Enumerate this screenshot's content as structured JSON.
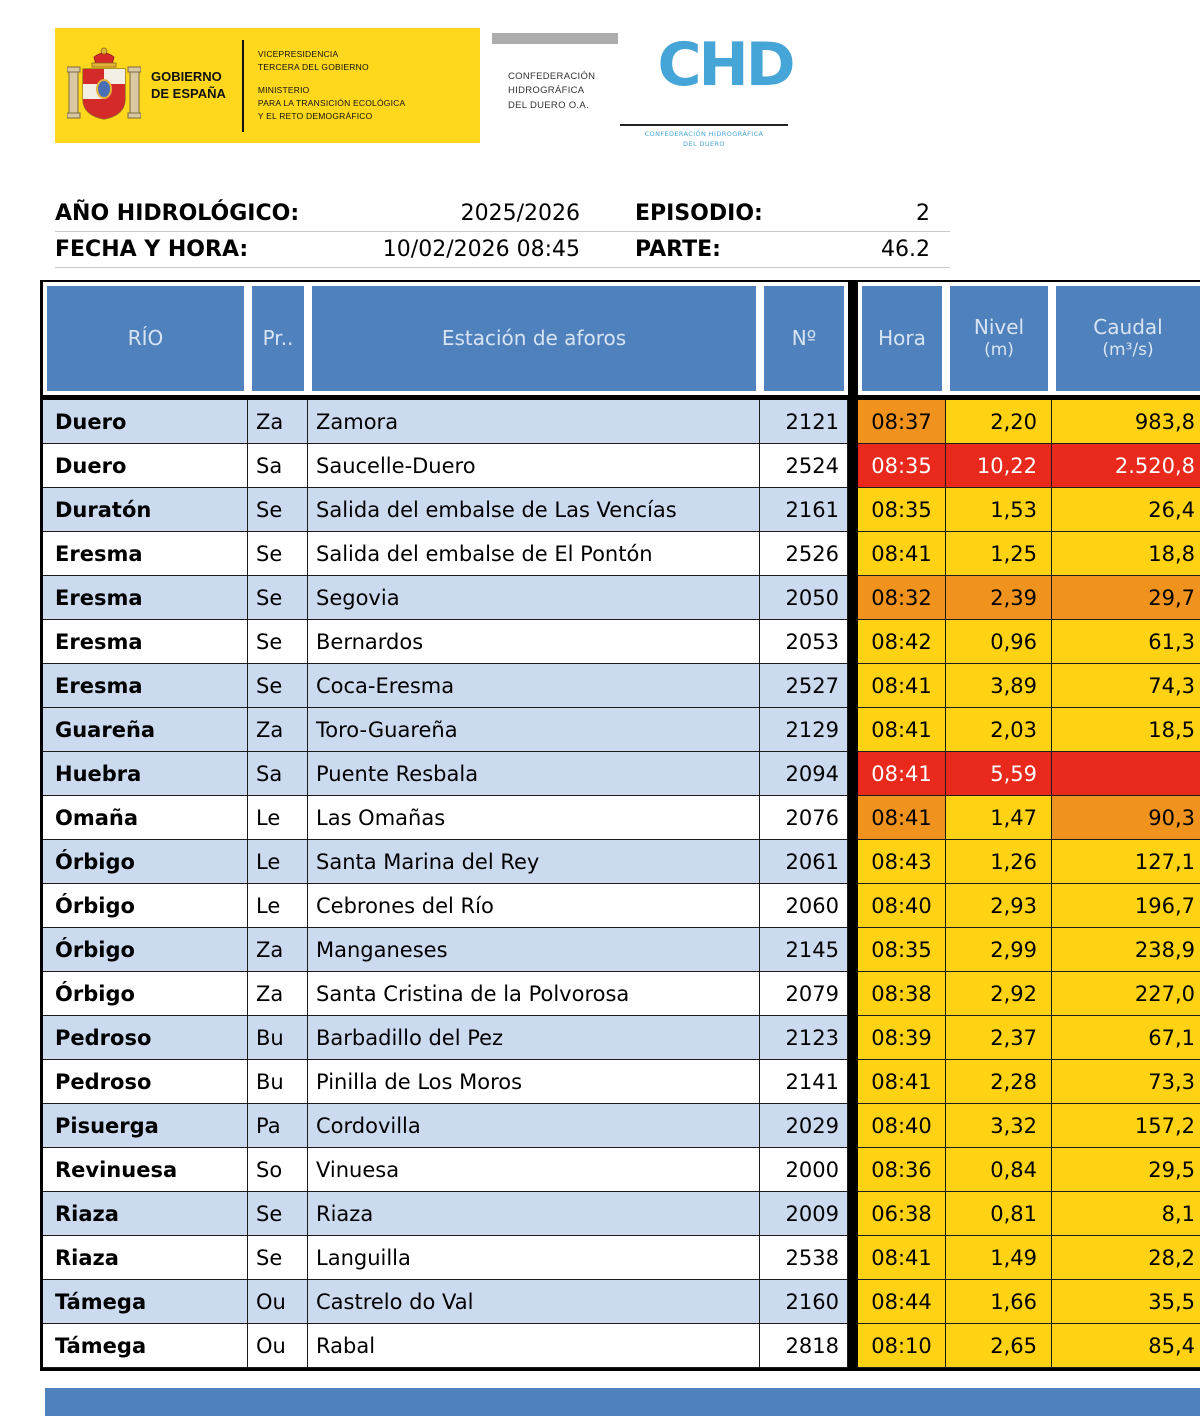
{
  "colors": {
    "header_blue": "#4F81BD",
    "row_blue": "#CBDAEF",
    "status_yellow": "#FFD213",
    "status_orange": "#F0921E",
    "status_red": "#E8291C",
    "logo_yellow": "#FFD71C",
    "chd_blue": "#45A5D6"
  },
  "branding": {
    "gobierno_line1": "GOBIERNO",
    "gobierno_line2": "DE ESPAÑA",
    "vice_line1": "VICEPRESIDENCIA",
    "vice_line2": "TERCERA DEL GOBIERNO",
    "min_line1": "MINISTERIO",
    "min_line2": "PARA LA TRANSICIÓN ECOLÓGICA",
    "min_line3": "Y EL RETO DEMOGRÁFICO",
    "conf_line1": "CONFEDERACIÓN",
    "conf_line2": "HIDROGRÁFICA",
    "conf_line3": "DEL DUERO O.A.",
    "chd": "CHD",
    "chd_sub1": "CONFEDERACIÓN HIDROGRÁFICA",
    "chd_sub2": "DEL DUERO"
  },
  "info": {
    "ano_label": "AÑO HIDROLÓGICO:",
    "ano_value": "2025/2026",
    "episodio_label": "EPISODIO:",
    "episodio_value": "2",
    "fecha_label": "FECHA Y HORA:",
    "fecha_value": "10/02/2026 08:45",
    "parte_label": "PARTE:",
    "parte_value": "46.2"
  },
  "table": {
    "headers": {
      "rio": "RÍO",
      "pr": "Pr..",
      "estacion": "Estación de aforos",
      "num": "Nº",
      "hora": "Hora",
      "nivel_line1": "Nivel",
      "nivel_line2": "(m)",
      "caudal_line1": "Caudal",
      "caudal_line2": "(m³/s)"
    },
    "rows": [
      {
        "rio": "Duero",
        "pr": "Za",
        "estacion": "Zamora",
        "num": "2121",
        "hora": "08:37",
        "nivel": "2,20",
        "caudal": "983,8",
        "shaded": true,
        "status": [
          "orange",
          "yellow",
          "yellow"
        ]
      },
      {
        "rio": "Duero",
        "pr": "Sa",
        "estacion": "Saucelle-Duero",
        "num": "2524",
        "hora": "08:35",
        "nivel": "10,22",
        "caudal": "2.520,8",
        "shaded": false,
        "status": [
          "red",
          "red",
          "red"
        ]
      },
      {
        "rio": "Duratón",
        "pr": "Se",
        "estacion": "Salida del embalse de Las Vencías",
        "num": "2161",
        "hora": "08:35",
        "nivel": "1,53",
        "caudal": "26,4",
        "shaded": true,
        "status": [
          "yellow",
          "yellow",
          "yellow"
        ]
      },
      {
        "rio": "Eresma",
        "pr": "Se",
        "estacion": "Salida del embalse de El Pontón",
        "num": "2526",
        "hora": "08:41",
        "nivel": "1,25",
        "caudal": "18,8",
        "shaded": false,
        "status": [
          "yellow",
          "yellow",
          "yellow"
        ]
      },
      {
        "rio": "Eresma",
        "pr": "Se",
        "estacion": "Segovia",
        "num": "2050",
        "hora": "08:32",
        "nivel": "2,39",
        "caudal": "29,7",
        "shaded": true,
        "status": [
          "orange",
          "orange",
          "orange"
        ]
      },
      {
        "rio": "Eresma",
        "pr": "Se",
        "estacion": "Bernardos",
        "num": "2053",
        "hora": "08:42",
        "nivel": "0,96",
        "caudal": "61,3",
        "shaded": false,
        "status": [
          "yellow",
          "yellow",
          "yellow"
        ]
      },
      {
        "rio": "Eresma",
        "pr": "Se",
        "estacion": "Coca-Eresma",
        "num": "2527",
        "hora": "08:41",
        "nivel": "3,89",
        "caudal": "74,3",
        "shaded": true,
        "status": [
          "yellow",
          "yellow",
          "yellow"
        ]
      },
      {
        "rio": "Guareña",
        "pr": "Za",
        "estacion": "Toro-Guareña",
        "num": "2129",
        "hora": "08:41",
        "nivel": "2,03",
        "caudal": "18,5",
        "shaded": true,
        "status": [
          "yellow",
          "yellow",
          "yellow"
        ]
      },
      {
        "rio": "Huebra",
        "pr": "Sa",
        "estacion": "Puente Resbala",
        "num": "2094",
        "hora": "08:41",
        "nivel": "5,59",
        "caudal": "",
        "shaded": true,
        "status": [
          "red",
          "red",
          "red"
        ]
      },
      {
        "rio": "Omaña",
        "pr": "Le",
        "estacion": "Las Omañas",
        "num": "2076",
        "hora": "08:41",
        "nivel": "1,47",
        "caudal": "90,3",
        "shaded": false,
        "status": [
          "orange",
          "yellow",
          "orange"
        ]
      },
      {
        "rio": "Órbigo",
        "pr": "Le",
        "estacion": "Santa Marina del Rey",
        "num": "2061",
        "hora": "08:43",
        "nivel": "1,26",
        "caudal": "127,1",
        "shaded": true,
        "status": [
          "yellow",
          "yellow",
          "yellow"
        ]
      },
      {
        "rio": "Órbigo",
        "pr": "Le",
        "estacion": "Cebrones del Río",
        "num": "2060",
        "hora": "08:40",
        "nivel": "2,93",
        "caudal": "196,7",
        "shaded": false,
        "status": [
          "yellow",
          "yellow",
          "yellow"
        ]
      },
      {
        "rio": "Órbigo",
        "pr": "Za",
        "estacion": "Manganeses",
        "num": "2145",
        "hora": "08:35",
        "nivel": "2,99",
        "caudal": "238,9",
        "shaded": true,
        "status": [
          "yellow",
          "yellow",
          "yellow"
        ]
      },
      {
        "rio": "Órbigo",
        "pr": "Za",
        "estacion": "Santa Cristina de la Polvorosa",
        "num": "2079",
        "hora": "08:38",
        "nivel": "2,92",
        "caudal": "227,0",
        "shaded": false,
        "status": [
          "yellow",
          "yellow",
          "yellow"
        ]
      },
      {
        "rio": "Pedroso",
        "pr": "Bu",
        "estacion": "Barbadillo del Pez",
        "num": "2123",
        "hora": "08:39",
        "nivel": "2,37",
        "caudal": "67,1",
        "shaded": true,
        "status": [
          "yellow",
          "yellow",
          "yellow"
        ]
      },
      {
        "rio": "Pedroso",
        "pr": "Bu",
        "estacion": "Pinilla de Los Moros",
        "num": "2141",
        "hora": "08:41",
        "nivel": "2,28",
        "caudal": "73,3",
        "shaded": false,
        "status": [
          "yellow",
          "yellow",
          "yellow"
        ]
      },
      {
        "rio": "Pisuerga",
        "pr": "Pa",
        "estacion": "Cordovilla",
        "num": "2029",
        "hora": "08:40",
        "nivel": "3,32",
        "caudal": "157,2",
        "shaded": true,
        "status": [
          "yellow",
          "yellow",
          "yellow"
        ]
      },
      {
        "rio": "Revinuesa",
        "pr": "So",
        "estacion": "Vinuesa",
        "num": "2000",
        "hora": "08:36",
        "nivel": "0,84",
        "caudal": "29,5",
        "shaded": false,
        "status": [
          "yellow",
          "yellow",
          "yellow"
        ]
      },
      {
        "rio": "Riaza",
        "pr": "Se",
        "estacion": "Riaza",
        "num": "2009",
        "hora": "06:38",
        "nivel": "0,81",
        "caudal": "8,1",
        "shaded": true,
        "status": [
          "yellow",
          "yellow",
          "yellow"
        ]
      },
      {
        "rio": "Riaza",
        "pr": "Se",
        "estacion": "Languilla",
        "num": "2538",
        "hora": "08:41",
        "nivel": "1,49",
        "caudal": "28,2",
        "shaded": false,
        "status": [
          "yellow",
          "yellow",
          "yellow"
        ]
      },
      {
        "rio": "Támega",
        "pr": "Ou",
        "estacion": "Castrelo do Val",
        "num": "2160",
        "hora": "08:44",
        "nivel": "1,66",
        "caudal": "35,5",
        "shaded": true,
        "status": [
          "yellow",
          "yellow",
          "yellow"
        ]
      },
      {
        "rio": "Támega",
        "pr": "Ou",
        "estacion": "Rabal",
        "num": "2818",
        "hora": "08:10",
        "nivel": "2,65",
        "caudal": "85,4",
        "shaded": false,
        "status": [
          "yellow",
          "yellow",
          "yellow"
        ]
      }
    ]
  }
}
